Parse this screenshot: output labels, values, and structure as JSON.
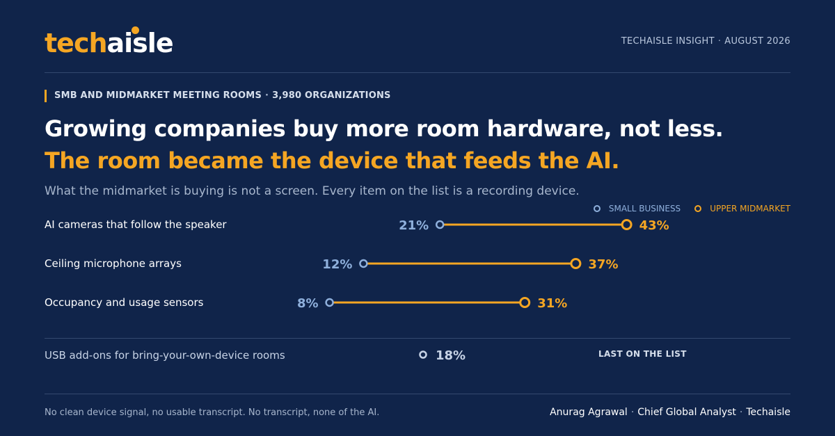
{
  "brand": {
    "logo_prefix": "tech",
    "logo_suffix": "aisle",
    "accent": "#f5a623",
    "background": "#10244a"
  },
  "header": {
    "source": "TECHAISLE INSIGHT",
    "date": "AUGUST 2026"
  },
  "kicker": {
    "segment": "SMB AND MIDMARKET MEETING ROOMS",
    "sample": "3,980 ORGANIZATIONS"
  },
  "headline": {
    "line1": "Growing companies buy more room hardware, not less.",
    "line2": "The room became the device that feeds the AI."
  },
  "subtitle": "What the midmarket is buying is not a screen. Every item on the list is a recording device.",
  "chart_data": {
    "type": "dumbbell",
    "unit": "%",
    "series": [
      {
        "name": "SMALL BUSINESS",
        "color": "#8fb0dc",
        "values": [
          21,
          12,
          8
        ]
      },
      {
        "name": "UPPER MIDMARKET",
        "color": "#f5a623",
        "values": [
          43,
          37,
          31
        ]
      }
    ],
    "categories": [
      "AI cameras that follow the speaker",
      "Ceiling microphone arrays",
      "Occupancy and usage sensors"
    ],
    "rows": [
      {
        "label": "AI cameras that follow the speaker",
        "small_business": 21,
        "upper_midmarket": 43,
        "small_label": "21%",
        "upper_label": "43%"
      },
      {
        "label": "Ceiling microphone arrays",
        "small_business": 12,
        "upper_midmarket": 37,
        "small_label": "12%",
        "upper_label": "37%"
      },
      {
        "label": "Occupancy and usage sensors",
        "small_business": 8,
        "upper_midmarket": 31,
        "small_label": "8%",
        "upper_label": "31%"
      }
    ],
    "single": {
      "label": "USB add-ons for bring-your-own-device rooms",
      "value": 18,
      "value_label": "18%",
      "note": "LAST ON THE LIST"
    },
    "legend_position": "top-right"
  },
  "footer": {
    "note": "No clean device signal, no usable transcript. No transcript, none of the AI.",
    "author": "Anurag Agrawal",
    "role": "Chief Global Analyst",
    "org": "Techaisle"
  }
}
